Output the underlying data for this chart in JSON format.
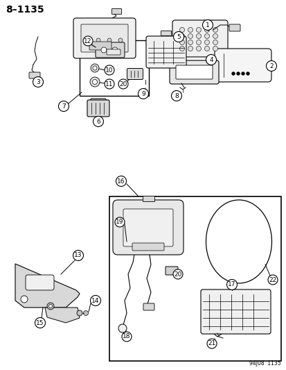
{
  "title": "8–1135",
  "footer": "94J08  1135",
  "bg": "#ffffff",
  "lc": "black",
  "fc_light": "#f5f5f5",
  "fc_mid": "#e0e0e0"
}
